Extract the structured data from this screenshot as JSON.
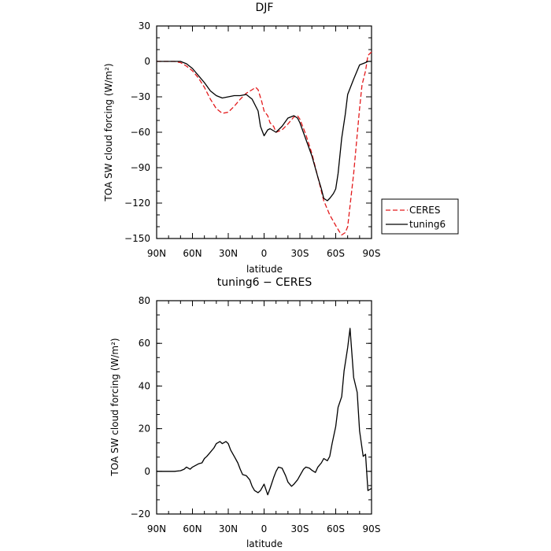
{
  "chart_data": [
    {
      "type": "line",
      "title": "DJF",
      "xlabel": "latitude",
      "ylabel": "TOA SW cloud forcing (W/m²)",
      "xlim": [
        90,
        -90
      ],
      "ylim": [
        -150,
        30
      ],
      "x_ticks": [
        90,
        60,
        30,
        0,
        -30,
        -60,
        -90
      ],
      "x_tick_labels": [
        "90N",
        "60N",
        "30N",
        "0",
        "30S",
        "60S",
        "90S"
      ],
      "y_ticks": [
        30,
        0,
        -30,
        -60,
        -90,
        -120,
        -150
      ],
      "y_tick_labels": [
        "30",
        "0",
        "−30",
        "−60",
        "−90",
        "−120",
        "−150"
      ],
      "legend": "outside-right",
      "series": [
        {
          "name": "CERES",
          "color": "#e31a1c",
          "dash": "dashed",
          "x": [
            90,
            85,
            80,
            75,
            70,
            65,
            60,
            55,
            50,
            45,
            40,
            35,
            30,
            25,
            20,
            15,
            10,
            7,
            5,
            2,
            0,
            -3,
            -5,
            -8,
            -10,
            -15,
            -20,
            -25,
            -28,
            -30,
            -35,
            -40,
            -45,
            -50,
            -55,
            -60,
            -63,
            -65,
            -68,
            -70,
            -75,
            -80,
            -82,
            -85,
            -87,
            -90
          ],
          "y": [
            0,
            0,
            0,
            0,
            -1,
            -4,
            -8,
            -14,
            -22,
            -32,
            -40,
            -44,
            -43,
            -38,
            -32,
            -27,
            -24,
            -22,
            -24,
            -34,
            -42,
            -46,
            -52,
            -55,
            -60,
            -58,
            -53,
            -47,
            -46,
            -49,
            -62,
            -78,
            -98,
            -118,
            -130,
            -139,
            -144,
            -147,
            -145,
            -140,
            -95,
            -40,
            -20,
            -8,
            5,
            8
          ]
        },
        {
          "name": "tuning6",
          "color": "#000000",
          "dash": "solid",
          "x": [
            90,
            85,
            80,
            75,
            70,
            65,
            60,
            55,
            50,
            45,
            40,
            35,
            30,
            25,
            20,
            15,
            10,
            5,
            3,
            0,
            -3,
            -5,
            -10,
            -15,
            -20,
            -25,
            -28,
            -30,
            -35,
            -40,
            -45,
            -48,
            -50,
            -53,
            -55,
            -58,
            -60,
            -62,
            -65,
            -68,
            -70,
            -75,
            -80,
            -85,
            -87,
            -90
          ],
          "y": [
            0,
            0,
            0,
            0,
            0,
            -2,
            -6,
            -12,
            -18,
            -25,
            -29,
            -31,
            -30,
            -29,
            -29,
            -28,
            -32,
            -42,
            -55,
            -63,
            -58,
            -57,
            -60,
            -55,
            -48,
            -46,
            -48,
            -52,
            -66,
            -80,
            -98,
            -108,
            -116,
            -118,
            -116,
            -112,
            -108,
            -95,
            -65,
            -45,
            -28,
            -15,
            -3,
            -1,
            0,
            0
          ]
        }
      ]
    },
    {
      "type": "line",
      "title": "tuning6 − CERES",
      "xlabel": "latitude",
      "ylabel": "TOA SW cloud forcing (W/m²)",
      "xlim": [
        90,
        -90
      ],
      "ylim": [
        -20,
        80
      ],
      "x_ticks": [
        90,
        60,
        30,
        0,
        -30,
        -60,
        -90
      ],
      "x_tick_labels": [
        "90N",
        "60N",
        "30N",
        "0",
        "30S",
        "60S",
        "90S"
      ],
      "y_ticks": [
        80,
        60,
        40,
        20,
        0,
        -20
      ],
      "y_tick_labels": [
        "80",
        "60",
        "40",
        "20",
        "0",
        "−20"
      ],
      "series": [
        {
          "color": "#000000",
          "dash": "solid",
          "x": [
            90,
            85,
            80,
            75,
            70,
            67,
            65,
            62,
            60,
            55,
            52,
            50,
            48,
            45,
            42,
            40,
            37,
            35,
            32,
            30,
            28,
            25,
            22,
            20,
            18,
            15,
            12,
            10,
            8,
            5,
            3,
            0,
            -3,
            -5,
            -8,
            -10,
            -12,
            -15,
            -18,
            -20,
            -23,
            -25,
            -28,
            -30,
            -33,
            -35,
            -38,
            -40,
            -43,
            -45,
            -48,
            -50,
            -53,
            -55,
            -57,
            -60,
            -62,
            -65,
            -67,
            -70,
            -72,
            -75,
            -78,
            -80,
            -83,
            -85,
            -87,
            -90
          ],
          "y": [
            0,
            0,
            0,
            0,
            0.3,
            1,
            2,
            1,
            2,
            3.5,
            4,
            6,
            7,
            9,
            11,
            13,
            14,
            13,
            14,
            13,
            10,
            7,
            4,
            1,
            -1.5,
            -2,
            -4,
            -7,
            -9,
            -10,
            -9,
            -6,
            -11,
            -8,
            -3,
            0,
            2,
            1.5,
            -2,
            -5,
            -7,
            -6,
            -4,
            -2,
            1,
            2,
            1.5,
            0.5,
            -0.5,
            2,
            4,
            6,
            5,
            7,
            13,
            21,
            30,
            35,
            47,
            58,
            67,
            44,
            37,
            19,
            7,
            8,
            -9,
            -8
          ]
        }
      ]
    }
  ]
}
